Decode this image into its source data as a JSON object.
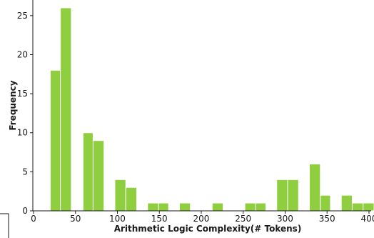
{
  "chart_data": {
    "type": "bar",
    "title": "",
    "xlabel": "Arithmetic Logic Complexity(# Tokens)",
    "ylabel": "Frequency",
    "xlim": [
      0,
      400
    ],
    "ylim": [
      0,
      27
    ],
    "xticks": [
      "0",
      "50",
      "100",
      "150",
      "200",
      "250",
      "300",
      "350",
      "400"
    ],
    "yticks": [
      "0",
      "5",
      "10",
      "15",
      "20",
      "25"
    ],
    "bar_color": "#8fce3e",
    "grid": false,
    "bins": [
      {
        "start": 20,
        "end": 32,
        "value": 18
      },
      {
        "start": 32,
        "end": 45,
        "value": 26
      },
      {
        "start": 59,
        "end": 71,
        "value": 10
      },
      {
        "start": 71,
        "end": 84,
        "value": 9
      },
      {
        "start": 97,
        "end": 110,
        "value": 4
      },
      {
        "start": 110,
        "end": 123,
        "value": 3
      },
      {
        "start": 136,
        "end": 149,
        "value": 1
      },
      {
        "start": 149,
        "end": 161,
        "value": 1
      },
      {
        "start": 174,
        "end": 187,
        "value": 1
      },
      {
        "start": 213,
        "end": 226,
        "value": 1
      },
      {
        "start": 252,
        "end": 265,
        "value": 1
      },
      {
        "start": 265,
        "end": 277,
        "value": 1
      },
      {
        "start": 290,
        "end": 303,
        "value": 4
      },
      {
        "start": 303,
        "end": 316,
        "value": 4
      },
      {
        "start": 329,
        "end": 342,
        "value": 6
      },
      {
        "start": 342,
        "end": 354,
        "value": 2
      },
      {
        "start": 367,
        "end": 380,
        "value": 2
      },
      {
        "start": 380,
        "end": 393,
        "value": 1
      },
      {
        "start": 393,
        "end": 406,
        "value": 1
      }
    ]
  }
}
